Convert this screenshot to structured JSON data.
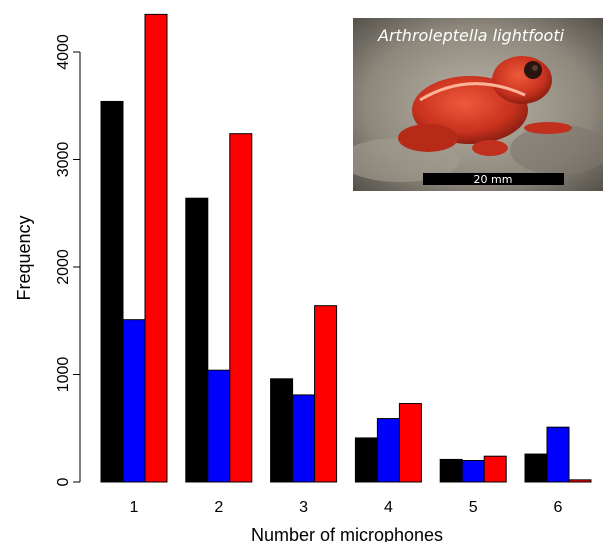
{
  "chart_data": {
    "type": "bar",
    "xlabel": "Number of microphones",
    "ylabel": "Frequency",
    "categories": [
      "1",
      "2",
      "3",
      "4",
      "5",
      "6"
    ],
    "yticks": [
      0,
      1000,
      2000,
      3000,
      4000
    ],
    "ylim": [
      0,
      4400
    ],
    "series": [
      {
        "color": "#000000",
        "values": [
          3540,
          2640,
          960,
          410,
          210,
          260
        ]
      },
      {
        "color": "#0000ff",
        "values": [
          1510,
          1040,
          810,
          590,
          200,
          510
        ]
      },
      {
        "color": "#ff0000",
        "values": [
          4350,
          3240,
          1640,
          730,
          240,
          20
        ]
      }
    ],
    "grid": false
  },
  "inset": {
    "title": "Arthroleptella lightfooti",
    "scale_label": "20 mm",
    "subject": "frog-photo"
  }
}
